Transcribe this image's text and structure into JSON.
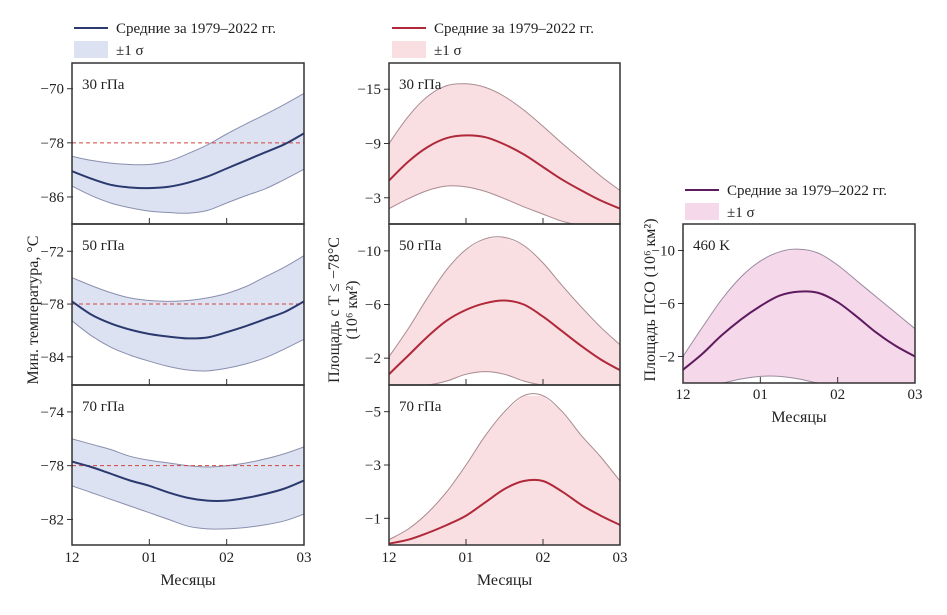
{
  "chart_data": [
    {
      "type": "area",
      "column": "left",
      "ylabel": "Мин. температура, °C",
      "xlabel": "Месяцы",
      "x_ticks": [
        "12",
        "01",
        "02",
        "03"
      ],
      "x": [
        0,
        0.25,
        0.5,
        0.75,
        1.0,
        1.25,
        1.5,
        1.75,
        2.0,
        2.25,
        2.5,
        2.75,
        3.0
      ],
      "legend": {
        "mean_label": "Средние за 1979–2022 гг.",
        "band_label": "±1 σ",
        "placement": "top"
      },
      "colors": {
        "mean": "#2b3a6e",
        "band": "#dde2f3",
        "band_edge": "#8a8fae",
        "reference": "#d0453f"
      },
      "panels": [
        {
          "label": "30 гПа",
          "ylim": [
            -90,
            -66.2
          ],
          "yticks": [
            -70,
            -78,
            -86
          ],
          "reference_line": -78,
          "mean": [
            -82.2,
            -83.3,
            -84.2,
            -84.6,
            -84.7,
            -84.5,
            -83.9,
            -83.0,
            -81.8,
            -80.6,
            -79.4,
            -78.2,
            -76.6
          ],
          "upper": [
            -80.0,
            -80.6,
            -81.0,
            -81.2,
            -81.2,
            -80.7,
            -79.6,
            -78.3,
            -76.7,
            -75.2,
            -73.8,
            -72.3,
            -70.7
          ],
          "lower": [
            -84.4,
            -85.8,
            -86.9,
            -87.6,
            -88.1,
            -88.3,
            -88.4,
            -88.0,
            -86.9,
            -85.8,
            -84.8,
            -83.4,
            -81.9
          ]
        },
        {
          "label": "50 гПа",
          "ylim": [
            -87.2,
            -68.9
          ],
          "yticks": [
            -72,
            -78,
            -84
          ],
          "reference_line": -78,
          "mean": [
            -77.7,
            -79.2,
            -80.2,
            -80.9,
            -81.4,
            -81.7,
            -81.9,
            -81.8,
            -81.2,
            -80.5,
            -79.7,
            -78.9,
            -77.7
          ],
          "upper": [
            -75.0,
            -75.9,
            -76.7,
            -77.3,
            -77.6,
            -77.7,
            -77.6,
            -77.3,
            -76.8,
            -76.0,
            -74.9,
            -73.8,
            -72.5
          ],
          "lower": [
            -79.9,
            -81.6,
            -82.9,
            -83.8,
            -84.5,
            -85.1,
            -85.5,
            -85.6,
            -85.3,
            -84.8,
            -84.1,
            -83.1,
            -82.0
          ]
        },
        {
          "label": "70 гПа",
          "ylim": [
            -83.9,
            -72.0
          ],
          "yticks": [
            -74,
            -78,
            -82
          ],
          "reference_line": -78,
          "mean": [
            -77.7,
            -78.1,
            -78.6,
            -79.1,
            -79.5,
            -80.0,
            -80.4,
            -80.6,
            -80.6,
            -80.4,
            -80.1,
            -79.7,
            -79.1
          ],
          "upper": [
            -76.0,
            -76.4,
            -76.8,
            -77.3,
            -77.6,
            -77.8,
            -78.0,
            -78.1,
            -78.0,
            -77.8,
            -77.5,
            -77.1,
            -76.6
          ],
          "lower": [
            -79.5,
            -80.0,
            -80.5,
            -81.0,
            -81.5,
            -82.0,
            -82.5,
            -82.7,
            -82.7,
            -82.6,
            -82.4,
            -82.1,
            -81.6
          ]
        }
      ]
    },
    {
      "type": "area",
      "column": "middle",
      "ylabel": "Площадь с T ≤ −78°C",
      "ylabel2": "(10⁶ км²)",
      "xlabel": "Месяцы",
      "x_ticks": [
        "12",
        "01",
        "02",
        "03"
      ],
      "x": [
        0,
        0.25,
        0.5,
        0.75,
        1.0,
        1.25,
        1.5,
        1.75,
        2.0,
        2.25,
        2.5,
        2.75,
        3.0
      ],
      "legend": {
        "mean_label": "Средние за 1979–2022 гг.",
        "band_label": "±1 σ",
        "placement": "top"
      },
      "colors": {
        "mean": "#b0283a",
        "band": "#f9dfe1",
        "band_edge": "#a98a90"
      },
      "panels": [
        {
          "label": "30 гПа",
          "ylim": [
            -0.1,
            -17.9
          ],
          "yticks": [
            -15,
            -9,
            -3
          ],
          "mean": [
            -4.9,
            -7.0,
            -8.6,
            -9.6,
            -9.9,
            -9.7,
            -8.9,
            -7.8,
            -6.4,
            -5.0,
            -3.8,
            -2.7,
            -1.8
          ],
          "upper": [
            -9.0,
            -12.0,
            -14.2,
            -15.4,
            -15.6,
            -15.2,
            -14.2,
            -12.7,
            -10.9,
            -9.0,
            -7.2,
            -5.4,
            -3.8
          ],
          "lower": [
            -1.8,
            -2.9,
            -3.8,
            -4.3,
            -4.2,
            -3.7,
            -2.9,
            -2.0,
            -1.2,
            -0.4,
            0,
            0,
            0
          ]
        },
        {
          "label": "50 гПа",
          "ylim": [
            0,
            -12.0
          ],
          "yticks": [
            -10,
            -6,
            -2
          ],
          "mean": [
            -0.8,
            -2.2,
            -3.6,
            -4.8,
            -5.6,
            -6.1,
            -6.3,
            -6.0,
            -5.1,
            -4.0,
            -2.9,
            -1.9,
            -1.1
          ],
          "upper": [
            -2.1,
            -4.2,
            -6.5,
            -8.6,
            -10.1,
            -10.9,
            -11.0,
            -10.4,
            -9.1,
            -7.4,
            -5.8,
            -4.3,
            -3.0
          ],
          "lower": [
            0,
            0,
            0,
            -0.3,
            -0.8,
            -1.0,
            -0.8,
            -0.3,
            0,
            0,
            0,
            0,
            0
          ]
        },
        {
          "label": "70 гПа",
          "ylim": [
            0,
            -6.0
          ],
          "yticks": [
            -5,
            -3,
            -1
          ],
          "mean": [
            -0.05,
            -0.2,
            -0.45,
            -0.75,
            -1.1,
            -1.6,
            -2.1,
            -2.4,
            -2.4,
            -2.0,
            -1.5,
            -1.1,
            -0.75
          ],
          "upper": [
            -0.2,
            -0.6,
            -1.2,
            -2.0,
            -3.0,
            -4.1,
            -5.0,
            -5.6,
            -5.6,
            -5.0,
            -4.1,
            -3.3,
            -2.4
          ],
          "lower": [
            0,
            0,
            0,
            0,
            0,
            0,
            0,
            0,
            0,
            0,
            0,
            0,
            0
          ]
        }
      ]
    },
    {
      "type": "area",
      "column": "right",
      "ylabel": "Площадь ПСО (10⁶ км²)",
      "xlabel": "Месяцы",
      "x_ticks": [
        "12",
        "01",
        "02",
        "03"
      ],
      "x": [
        0,
        0.25,
        0.5,
        0.75,
        1.0,
        1.25,
        1.5,
        1.75,
        2.0,
        2.25,
        2.5,
        2.75,
        3.0
      ],
      "legend": {
        "mean_label": "Средние за 1979–2022 гг.",
        "band_label": "±1 σ",
        "placement": "top"
      },
      "colors": {
        "mean": "#5e1b5e",
        "band": "#f5d8ea",
        "band_edge": "#9a8aa0"
      },
      "panels": [
        {
          "label": "460 K",
          "ylim": [
            0,
            -12.0
          ],
          "yticks": [
            -10,
            -6,
            -2
          ],
          "mean": [
            -1.0,
            -2.2,
            -3.6,
            -4.8,
            -5.8,
            -6.6,
            -6.9,
            -6.8,
            -6.1,
            -5.0,
            -3.8,
            -2.8,
            -2.0
          ],
          "upper": [
            -2.0,
            -4.2,
            -6.3,
            -8.0,
            -9.2,
            -9.9,
            -10.1,
            -9.8,
            -8.9,
            -7.7,
            -6.5,
            -5.3,
            -4.1
          ],
          "lower": [
            0,
            0,
            0,
            -0.3,
            -0.5,
            -0.5,
            -0.3,
            0,
            0,
            0,
            0,
            0,
            0
          ]
        }
      ]
    }
  ]
}
